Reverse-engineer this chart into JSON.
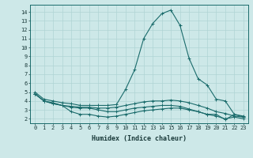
{
  "xlabel": "Humidex (Indice chaleur)",
  "ylabel": "",
  "xlim": [
    -0.5,
    23.5
  ],
  "ylim": [
    1.5,
    14.8
  ],
  "yticks": [
    2,
    3,
    4,
    5,
    6,
    7,
    8,
    9,
    10,
    11,
    12,
    13,
    14
  ],
  "xticks": [
    0,
    1,
    2,
    3,
    4,
    5,
    6,
    7,
    8,
    9,
    10,
    11,
    12,
    13,
    14,
    15,
    16,
    17,
    18,
    19,
    20,
    21,
    22,
    23
  ],
  "background_color": "#cde8e8",
  "line_color": "#1a6b6b",
  "grid_color": "#b0d4d4",
  "line1": [
    5.0,
    4.2,
    4.0,
    3.8,
    3.7,
    3.5,
    3.5,
    3.5,
    3.5,
    3.6,
    5.3,
    7.5,
    11.0,
    12.7,
    13.8,
    14.2,
    12.5,
    8.8,
    6.5,
    5.8,
    4.2,
    4.0,
    2.5,
    2.3
  ],
  "line2": [
    4.8,
    4.0,
    3.8,
    3.5,
    3.4,
    3.3,
    3.3,
    3.2,
    3.2,
    3.3,
    3.5,
    3.7,
    3.9,
    4.0,
    4.0,
    4.1,
    4.0,
    3.8,
    3.5,
    3.2,
    2.8,
    2.6,
    2.3,
    2.2
  ],
  "line3": [
    4.8,
    4.0,
    3.7,
    3.5,
    2.8,
    2.5,
    2.5,
    2.3,
    2.2,
    2.3,
    2.5,
    2.7,
    2.9,
    3.0,
    3.1,
    3.2,
    3.2,
    3.0,
    2.8,
    2.5,
    2.5,
    1.9,
    2.5,
    2.2
  ],
  "line4": [
    4.8,
    4.0,
    3.7,
    3.5,
    3.3,
    3.2,
    3.2,
    3.0,
    2.8,
    2.8,
    3.0,
    3.2,
    3.3,
    3.4,
    3.5,
    3.5,
    3.4,
    3.1,
    2.8,
    2.5,
    2.3,
    2.0,
    2.2,
    2.0
  ],
  "tick_fontsize": 5.0,
  "xlabel_fontsize": 6.0,
  "marker_size": 2.5,
  "linewidth": 0.8
}
